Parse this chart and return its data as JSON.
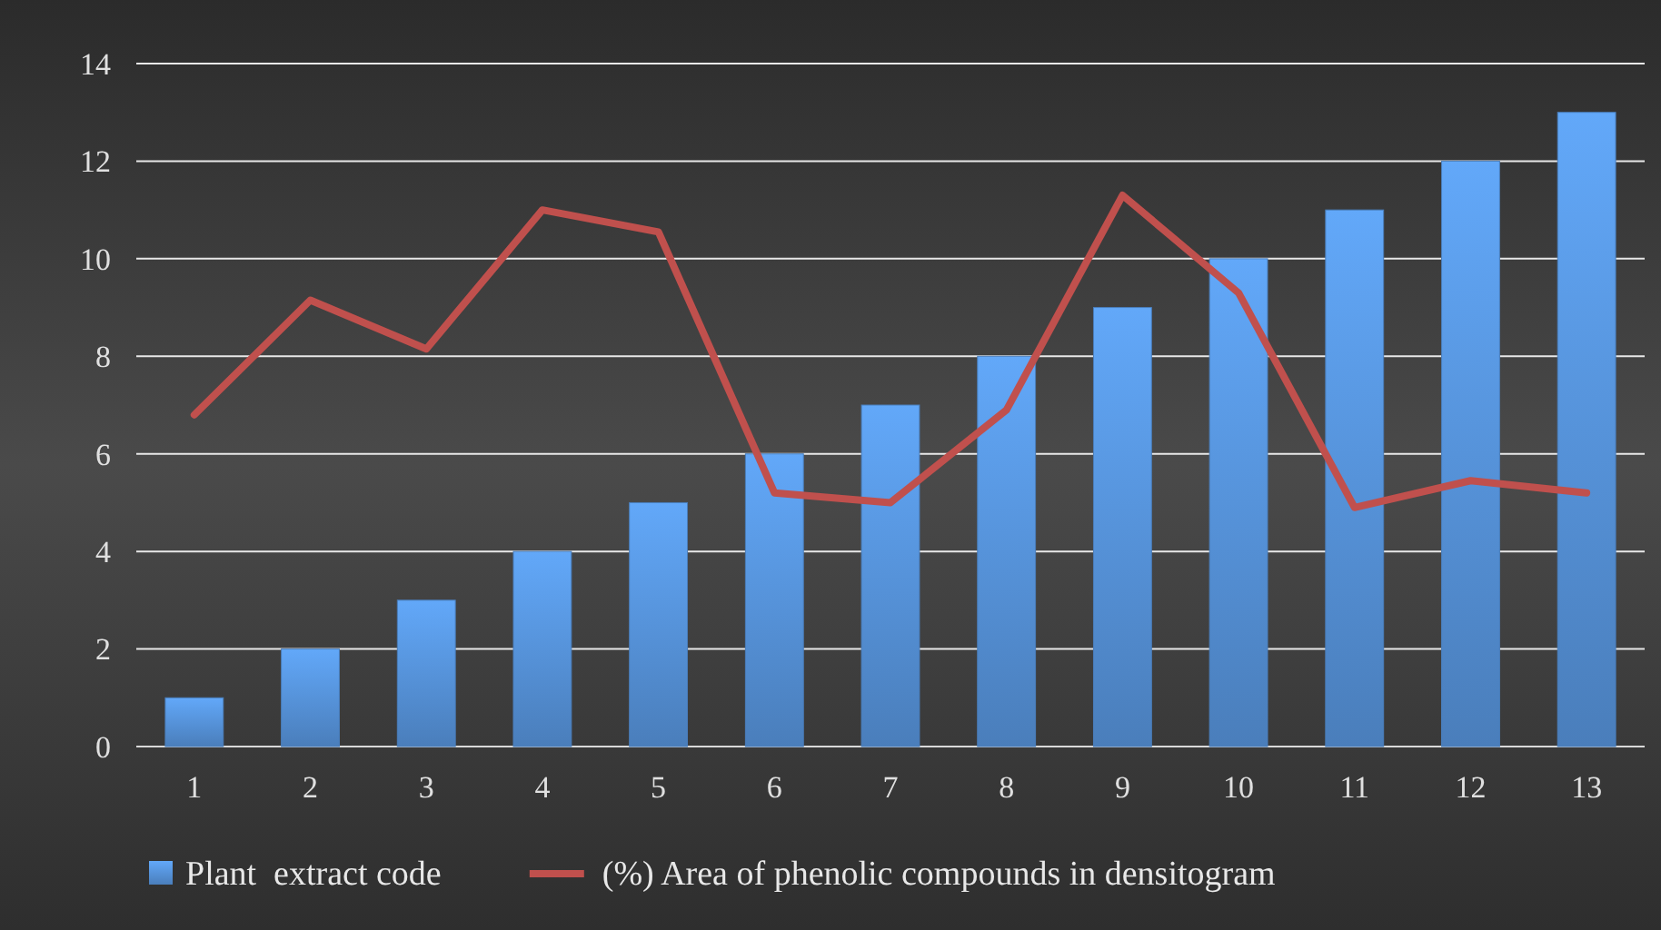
{
  "chart_data": {
    "type": "bar",
    "categories": [
      "1",
      "2",
      "3",
      "4",
      "5",
      "6",
      "7",
      "8",
      "9",
      "10",
      "11",
      "12",
      "13"
    ],
    "series": [
      {
        "name": "Plant  extract code",
        "color": "#4a7ebb",
        "values": [
          1,
          2,
          3,
          4,
          5,
          6,
          7,
          8,
          9,
          10,
          11,
          12,
          13
        ]
      },
      {
        "name": "(%) Area of phenolic compounds in densitogram",
        "type": "line",
        "color": "#c0504d",
        "values": [
          6.8,
          9.15,
          8.15,
          11,
          10.55,
          5.2,
          5,
          6.9,
          11.3,
          9.3,
          4.9,
          5.45,
          5.2
        ]
      }
    ],
    "ylim": [
      0,
      14
    ],
    "yticks": [
      0,
      2,
      4,
      6,
      8,
      10,
      12,
      14
    ],
    "grid": "y",
    "legend": "bottom",
    "marker": "none",
    "line_style": "solid"
  }
}
